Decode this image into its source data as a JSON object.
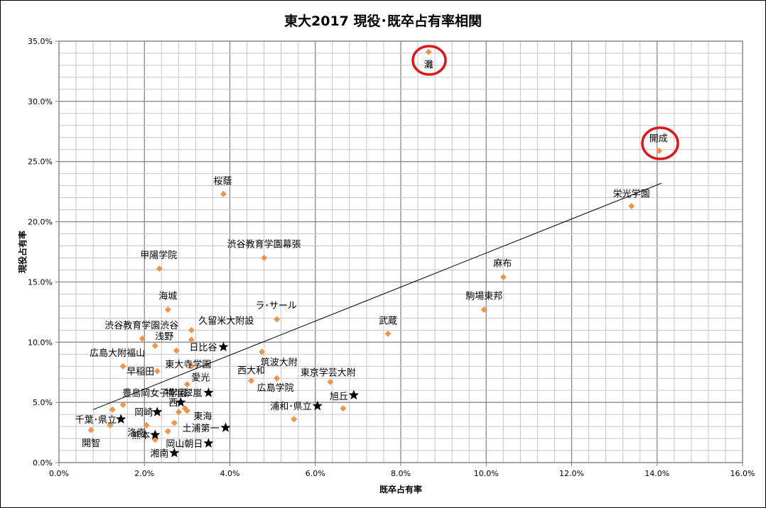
{
  "chart_data": {
    "type": "scatter",
    "title": "東大2017 現役･既卒占有率相関",
    "xlabel": "既卒占有率",
    "ylabel": "現役占有率",
    "xlim": [
      0,
      16
    ],
    "ylim": [
      0,
      35
    ],
    "x_ticks": [
      "0.0%",
      "2.0%",
      "4.0%",
      "6.0%",
      "8.0%",
      "10.0%",
      "12.0%",
      "14.0%",
      "16.0%"
    ],
    "y_ticks": [
      "0.0%",
      "5.0%",
      "10.0%",
      "15.0%",
      "20.0%",
      "25.0%",
      "30.0%",
      "35.0%"
    ],
    "grid": true,
    "marker_color": "#f0944a",
    "trendline": {
      "x": [
        0.8,
        14.1
      ],
      "y": [
        4.4,
        23.2
      ],
      "color": "#000000"
    },
    "highlight_circles": [
      "灘",
      "開成"
    ],
    "highlight_color": "#e0141b",
    "points": [
      {
        "label": "灘",
        "x": 8.65,
        "y": 34.1,
        "marker": "diamond"
      },
      {
        "label": "開成",
        "x": 14.05,
        "y": 25.9,
        "marker": "diamond"
      },
      {
        "label": "桜蔭",
        "x": 3.85,
        "y": 22.3,
        "marker": "diamond"
      },
      {
        "label": "栄光学園",
        "x": 13.4,
        "y": 21.3,
        "marker": "diamond"
      },
      {
        "label": "渋谷教育学園幕張",
        "x": 4.8,
        "y": 17.0,
        "marker": "diamond"
      },
      {
        "label": "甲陽学院",
        "x": 2.35,
        "y": 16.1,
        "marker": "diamond"
      },
      {
        "label": "麻布",
        "x": 10.4,
        "y": 15.4,
        "marker": "diamond"
      },
      {
        "label": "海城",
        "x": 2.55,
        "y": 12.7,
        "marker": "diamond"
      },
      {
        "label": "駒場東邦",
        "x": 9.95,
        "y": 12.7,
        "marker": "diamond"
      },
      {
        "label": "ラ･サール",
        "x": 5.1,
        "y": 11.9,
        "marker": "diamond"
      },
      {
        "label": "久留米大附設",
        "x": 3.1,
        "y": 11.0,
        "marker": "diamond"
      },
      {
        "label": "武蔵",
        "x": 7.7,
        "y": 10.7,
        "marker": "diamond"
      },
      {
        "label": "渋谷教育学園渋谷",
        "x": 1.95,
        "y": 10.3,
        "marker": "diamond"
      },
      {
        "label": "浅野",
        "x": 2.25,
        "y": 9.7,
        "marker": "diamond"
      },
      {
        "label": "日比谷",
        "x": 3.85,
        "y": 9.6,
        "marker": "star"
      },
      {
        "label": "筑波大附",
        "x": 4.75,
        "y": 9.2,
        "marker": "diamond"
      },
      {
        "label": "広島大附福山",
        "x": 1.5,
        "y": 8.0,
        "marker": "diamond"
      },
      {
        "label": "東大寺学園",
        "x": 3.1,
        "y": 8.0,
        "marker": "diamond"
      },
      {
        "label": "早稲田",
        "x": 2.3,
        "y": 7.6,
        "marker": "diamond"
      },
      {
        "label": "東京学芸大附",
        "x": 6.35,
        "y": 6.7,
        "marker": "diamond"
      },
      {
        "label": "西大和",
        "x": 4.5,
        "y": 6.8,
        "marker": "diamond"
      },
      {
        "label": "愛光",
        "x": 3.0,
        "y": 6.5,
        "marker": "diamond"
      },
      {
        "label": "広島学院",
        "x": 5.1,
        "y": 7.0,
        "marker": "diamond"
      },
      {
        "label": "旭丘",
        "x": 6.9,
        "y": 5.6,
        "marker": "star"
      },
      {
        "label": "横浜翠嵐",
        "x": 3.5,
        "y": 5.8,
        "marker": "star"
      },
      {
        "label": "豊島岡女子学園",
        "x": 1.5,
        "y": 4.8,
        "marker": "diamond"
      },
      {
        "label": "西",
        "x": 2.85,
        "y": 5.0,
        "marker": "star"
      },
      {
        "label": "浦和･県立",
        "x": 6.05,
        "y": 4.7,
        "marker": "star"
      },
      {
        "label": "東海",
        "x": 3.0,
        "y": 4.3,
        "marker": "diamond"
      },
      {
        "label": "岡崎",
        "x": 2.3,
        "y": 4.2,
        "marker": "star"
      },
      {
        "label": "千葉･県立",
        "x": 1.45,
        "y": 3.6,
        "marker": "star"
      },
      {
        "label": "土浦第一",
        "x": 3.9,
        "y": 2.9,
        "marker": "star"
      },
      {
        "label": "開智",
        "x": 0.75,
        "y": 2.7,
        "marker": "diamond"
      },
      {
        "label": "洛南",
        "x": 2.05,
        "y": 3.1,
        "marker": "diamond"
      },
      {
        "label": "熊本",
        "x": 2.25,
        "y": 2.3,
        "marker": "star"
      },
      {
        "label": "岡山朝日",
        "x": 3.5,
        "y": 1.6,
        "marker": "star"
      },
      {
        "label": "湘南",
        "x": 2.7,
        "y": 0.8,
        "marker": "star"
      }
    ],
    "unlabeled_points": [
      {
        "x": 1.25,
        "y": 4.4
      },
      {
        "x": 1.2,
        "y": 3.1
      },
      {
        "x": 2.55,
        "y": 2.6
      },
      {
        "x": 2.25,
        "y": 1.9
      },
      {
        "x": 2.7,
        "y": 3.3
      },
      {
        "x": 2.8,
        "y": 4.2
      },
      {
        "x": 2.95,
        "y": 4.5
      },
      {
        "x": 3.1,
        "y": 10.2
      },
      {
        "x": 2.75,
        "y": 9.3
      },
      {
        "x": 5.5,
        "y": 3.6
      },
      {
        "x": 6.65,
        "y": 4.5
      }
    ]
  }
}
